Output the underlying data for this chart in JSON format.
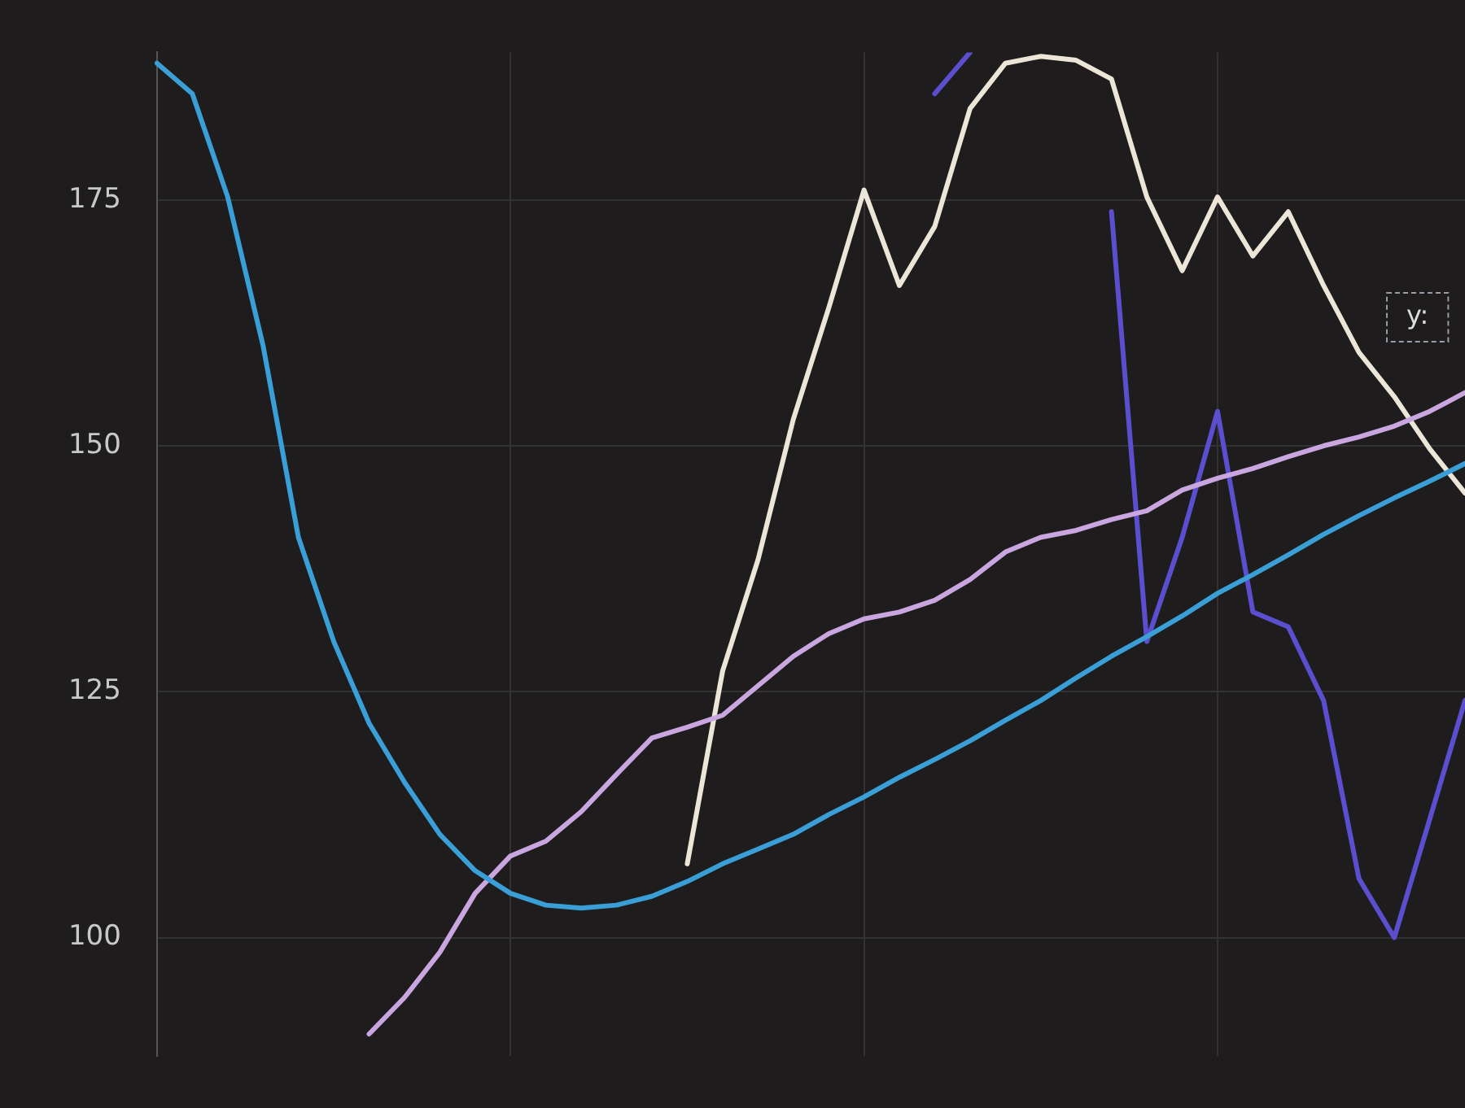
{
  "chart_data": {
    "type": "line",
    "categories": [
      null,
      null,
      null,
      null,
      null,
      null,
      null,
      null,
      null,
      null,
      null,
      null,
      null,
      null,
      null,
      null,
      null,
      null,
      null,
      null,
      null,
      null,
      null,
      null,
      null,
      null,
      null,
      null,
      null,
      null,
      null,
      null,
      null,
      null,
      null,
      null,
      null,
      null
    ],
    "ylim": [
      88,
      190
    ],
    "yticks": [
      100,
      125,
      150,
      175
    ],
    "grid": true,
    "legend": false,
    "tick_labels": "y",
    "marker": "none",
    "line_style": "solid",
    "annotations": [
      "y:"
    ],
    "series": [
      {
        "color": "#3a9fd6",
        "values": [
          188.9,
          185.8,
          175.3,
          160.2,
          140.7,
          130.1,
          121.8,
          115.8,
          110.5,
          106.8,
          104.5,
          103.3,
          103,
          103.3,
          104.2,
          105.7,
          107.5,
          109,
          110.5,
          112.5,
          114.3,
          116.3,
          118.1,
          120,
          122.1,
          124.1,
          126.4,
          128.6,
          130.6,
          132.7,
          135,
          136.9,
          138.9,
          141,
          142.9,
          144.7,
          146.4,
          148.2
        ]
      },
      {
        "color": "#c9a6e0",
        "values": [
          null,
          null,
          null,
          null,
          null,
          null,
          90.2,
          93.9,
          98.5,
          104.5,
          108.3,
          109.8,
          112.8,
          116.6,
          120.3,
          121.4,
          122.6,
          125.6,
          128.6,
          130.9,
          132.4,
          133.1,
          134.3,
          136.4,
          139.2,
          140.7,
          141.4,
          142.5,
          143.4,
          145.5,
          146.7,
          147.7,
          148.9,
          150,
          150.9,
          152,
          153.5,
          155.4
        ]
      },
      {
        "color": "#ebe6d8",
        "values": [
          null,
          null,
          null,
          null,
          null,
          null,
          null,
          null,
          null,
          null,
          null,
          null,
          null,
          null,
          null,
          107.5,
          127.1,
          138.4,
          152.7,
          164,
          176,
          166.3,
          172.3,
          184.3,
          188.9,
          189.6,
          189.2,
          187.3,
          175.3,
          167.8,
          175.3,
          169.3,
          173.8,
          166.3,
          159.5,
          155,
          149.7,
          145.2
        ]
      },
      {
        "color": "#5b4fd0",
        "values": [
          null,
          null,
          null,
          null,
          null,
          null,
          null,
          null,
          null,
          null,
          null,
          null,
          null,
          null,
          null,
          null,
          null,
          null,
          null,
          null,
          null,
          null,
          185.8,
          190,
          null,
          null,
          null,
          173.8,
          130.1,
          140.7,
          153.5,
          133.1,
          131.6,
          124.1,
          106,
          100,
          112,
          124.1
        ]
      }
    ]
  }
}
